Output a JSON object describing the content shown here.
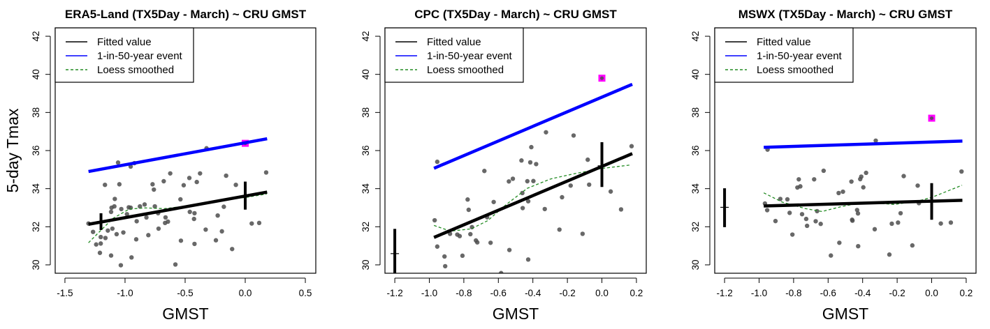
{
  "chart_data": [
    {
      "type": "scatter",
      "title": "ERA5-Land (TX5Day - March) ~ CRU GMST",
      "xlabel": "GMST",
      "ylabel": "5-day Tmax",
      "xlim": [
        -1.581,
        0.587
      ],
      "ylim": [
        29.56,
        42.44
      ],
      "xticks": [
        -1.5,
        -1.0,
        -0.5,
        0.0,
        0.5
      ],
      "xtick_labels": [
        "-1.5",
        "-1.0",
        "-0.5",
        "0.0",
        "0.5"
      ],
      "yticks": [
        30,
        32,
        34,
        36,
        38,
        40,
        42
      ],
      "ytick_labels": [
        "30",
        "32",
        "34",
        "36",
        "38",
        "40",
        "42"
      ],
      "legend": {
        "position": "top-left",
        "entries": [
          "Fitted value",
          "1-in-50-year event",
          "Loess smoothed"
        ]
      },
      "colors": {
        "fitted": "#000000",
        "event": "#0000ff",
        "loess": "#228b22",
        "points": "#4d4d4d",
        "observed": "#ff00ff"
      },
      "points": [
        [
          -1.304,
          32.17
        ],
        [
          -1.266,
          31.73
        ],
        [
          -1.24,
          31.07
        ],
        [
          -1.209,
          30.63
        ],
        [
          -1.202,
          31.12
        ],
        [
          -1.202,
          31.46
        ],
        [
          -1.163,
          31.41
        ],
        [
          -1.167,
          34.2
        ],
        [
          -1.143,
          31.8
        ],
        [
          -1.116,
          30.49
        ],
        [
          -1.116,
          32.78
        ],
        [
          -1.112,
          33.0
        ],
        [
          -1.105,
          31.9
        ],
        [
          -1.085,
          33.46
        ],
        [
          -1.089,
          33.07
        ],
        [
          -1.07,
          31.61
        ],
        [
          -1.058,
          35.37
        ],
        [
          -1.047,
          34.23
        ],
        [
          -1.035,
          29.98
        ],
        [
          -1.031,
          32.93
        ],
        [
          -1.014,
          31.7
        ],
        [
          -0.984,
          32.66
        ],
        [
          -0.969,
          33.02
        ],
        [
          -0.953,
          33.0
        ],
        [
          -0.953,
          35.16
        ],
        [
          -0.946,
          30.39
        ],
        [
          -0.922,
          35.34
        ],
        [
          -0.907,
          31.34
        ],
        [
          -0.903,
          32.29
        ],
        [
          -0.876,
          33.07
        ],
        [
          -0.837,
          33.17
        ],
        [
          -0.822,
          32.49
        ],
        [
          -0.806,
          31.56
        ],
        [
          -0.771,
          34.23
        ],
        [
          -0.76,
          33.95
        ],
        [
          -0.752,
          33.07
        ],
        [
          -0.721,
          31.9
        ],
        [
          -0.725,
          32.71
        ],
        [
          -0.678,
          34.39
        ],
        [
          -0.667,
          32.2
        ],
        [
          -0.663,
          32.49
        ],
        [
          -0.643,
          32.27
        ],
        [
          -0.624,
          34.8
        ],
        [
          -0.581,
          30.02
        ],
        [
          -0.539,
          33.44
        ],
        [
          -0.535,
          31.27
        ],
        [
          -0.512,
          34.18
        ],
        [
          -0.465,
          34.56
        ],
        [
          -0.461,
          32.78
        ],
        [
          -0.426,
          32.41
        ],
        [
          -0.422,
          32.71
        ],
        [
          -0.422,
          31.1
        ],
        [
          -0.403,
          34.35
        ],
        [
          -0.376,
          34.8
        ],
        [
          -0.329,
          31.85
        ],
        [
          -0.322,
          36.12
        ],
        [
          -0.244,
          31.29
        ],
        [
          -0.229,
          32.59
        ],
        [
          -0.194,
          31.76
        ],
        [
          -0.178,
          33.05
        ],
        [
          -0.159,
          34.68
        ],
        [
          -0.109,
          30.83
        ],
        [
          -0.078,
          34.2
        ],
        [
          0.054,
          32.17
        ],
        [
          0.116,
          32.2
        ],
        [
          0.174,
          34.85
        ]
      ],
      "observed": [
        0.0,
        36.38
      ],
      "fitted_line": [
        [
          -1.304,
          32.13
        ],
        [
          0.182,
          33.82
        ]
      ],
      "event_line": [
        [
          -1.304,
          34.9
        ],
        [
          0.182,
          36.62
        ]
      ],
      "loess": [
        [
          -1.304,
          31.16
        ],
        [
          -1.198,
          31.83
        ],
        [
          -1.1,
          32.44
        ],
        [
          -0.965,
          32.93
        ],
        [
          -0.83,
          32.99
        ],
        [
          -0.674,
          32.95
        ],
        [
          -0.539,
          33.05
        ],
        [
          -0.345,
          33.23
        ],
        [
          -0.151,
          33.44
        ],
        [
          0.004,
          33.54
        ],
        [
          0.178,
          33.72
        ]
      ],
      "error_bars": [
        {
          "x": -1.2,
          "low": 31.83,
          "high": 32.71,
          "center": 32.27
        },
        {
          "x": 0.0,
          "low": 32.9,
          "high": 34.37,
          "center": 33.6
        }
      ]
    },
    {
      "type": "scatter",
      "title": "CPC (TX5Day - March) ~ CRU GMST",
      "xlabel": "GMST",
      "ylabel": "",
      "xlim": [
        -1.257,
        0.257
      ],
      "ylim": [
        29.56,
        42.44
      ],
      "xticks": [
        -1.2,
        -1.0,
        -0.8,
        -0.6,
        -0.4,
        -0.2,
        0.0,
        0.2
      ],
      "xtick_labels": [
        "-1.2",
        "-1.0",
        "-0.8",
        "-0.6",
        "-0.4",
        "-0.2",
        "0.0",
        "0.2"
      ],
      "yticks": [
        30,
        32,
        34,
        36,
        38,
        40,
        42
      ],
      "ytick_labels": [
        "30",
        "32",
        "34",
        "36",
        "38",
        "40",
        "42"
      ],
      "legend": {
        "position": "top-left",
        "entries": [
          "Fitted value",
          "1-in-50-year event",
          "Loess smoothed"
        ]
      },
      "colors": {
        "fitted": "#000000",
        "event": "#0000ff",
        "loess": "#228b22",
        "points": "#4d4d4d",
        "observed": "#ff00ff"
      },
      "points": [
        [
          -0.969,
          32.34
        ],
        [
          -0.954,
          35.41
        ],
        [
          -0.954,
          30.96
        ],
        [
          -0.912,
          30.44
        ],
        [
          -0.908,
          29.93
        ],
        [
          -0.88,
          31.63
        ],
        [
          -0.838,
          31.59
        ],
        [
          -0.824,
          31.51
        ],
        [
          -0.808,
          30.48
        ],
        [
          -0.778,
          33.43
        ],
        [
          -0.772,
          32.89
        ],
        [
          -0.762,
          31.61
        ],
        [
          -0.753,
          31.98
        ],
        [
          -0.73,
          31.28
        ],
        [
          -0.722,
          31.18
        ],
        [
          -0.681,
          34.93
        ],
        [
          -0.665,
          32.5
        ],
        [
          -0.645,
          31.16
        ],
        [
          -0.627,
          33.3
        ],
        [
          -0.584,
          29.57
        ],
        [
          -0.539,
          34.38
        ],
        [
          -0.536,
          30.78
        ],
        [
          -0.516,
          34.52
        ],
        [
          -0.466,
          35.48
        ],
        [
          -0.461,
          33.77
        ],
        [
          -0.459,
          32.98
        ],
        [
          -0.432,
          34.39
        ],
        [
          -0.427,
          33.34
        ],
        [
          -0.427,
          30.28
        ],
        [
          -0.415,
          35.38
        ],
        [
          -0.409,
          36.18
        ],
        [
          -0.397,
          34.4
        ],
        [
          -0.381,
          35.29
        ],
        [
          -0.331,
          32.93
        ],
        [
          -0.324,
          36.96
        ],
        [
          -0.246,
          31.85
        ],
        [
          -0.231,
          33.55
        ],
        [
          -0.181,
          34.16
        ],
        [
          -0.164,
          36.79
        ],
        [
          -0.112,
          31.63
        ],
        [
          -0.082,
          35.52
        ],
        [
          -0.074,
          34.21
        ],
        [
          0.051,
          33.85
        ],
        [
          0.111,
          32.91
        ],
        [
          0.172,
          36.23
        ]
      ],
      "observed": [
        0.0,
        39.8
      ],
      "fitted_line": [
        [
          -0.973,
          31.44
        ],
        [
          0.176,
          35.84
        ]
      ],
      "event_line": [
        [
          -0.973,
          35.07
        ],
        [
          0.176,
          39.48
        ]
      ],
      "loess": [
        [
          -0.973,
          32.07
        ],
        [
          -0.878,
          31.77
        ],
        [
          -0.757,
          31.89
        ],
        [
          -0.662,
          32.32
        ],
        [
          -0.554,
          33.17
        ],
        [
          -0.432,
          34.02
        ],
        [
          -0.297,
          34.51
        ],
        [
          -0.162,
          34.78
        ],
        [
          0.0,
          35.06
        ],
        [
          0.162,
          35.24
        ]
      ],
      "error_bars": [
        {
          "x": -1.2,
          "low": 29.4,
          "high": 31.89,
          "center": 30.59
        },
        {
          "x": 0.0,
          "low": 34.09,
          "high": 36.44,
          "center": 35.2
        }
      ]
    },
    {
      "type": "scatter",
      "title": "MSWX (TX5Day - March) ~ CRU GMST",
      "xlabel": "GMST",
      "ylabel": "",
      "xlim": [
        -1.257,
        0.257
      ],
      "ylim": [
        29.56,
        42.44
      ],
      "xticks": [
        -1.2,
        -1.0,
        -0.8,
        -0.6,
        -0.4,
        -0.2,
        0.0,
        0.2
      ],
      "xtick_labels": [
        "-1.2",
        "-1.0",
        "-0.8",
        "-0.6",
        "-0.4",
        "-0.2",
        "0.0",
        "0.2"
      ],
      "yticks": [
        30,
        32,
        34,
        36,
        38,
        40,
        42
      ],
      "ytick_labels": [
        "30",
        "32",
        "34",
        "36",
        "38",
        "40",
        "42"
      ],
      "legend": {
        "position": "top-left",
        "entries": [
          "Fitted value",
          "1-in-50-year event",
          "Loess smoothed"
        ]
      },
      "colors": {
        "fitted": "#000000",
        "event": "#0000ff",
        "loess": "#228b22",
        "points": "#4d4d4d",
        "observed": "#ff00ff"
      },
      "points": [
        [
          -0.966,
          33.22
        ],
        [
          -0.951,
          36.05
        ],
        [
          -0.953,
          32.87
        ],
        [
          -0.905,
          32.3
        ],
        [
          -0.877,
          33.46
        ],
        [
          -0.836,
          33.44
        ],
        [
          -0.823,
          32.73
        ],
        [
          -0.807,
          31.59
        ],
        [
          -0.778,
          34.06
        ],
        [
          -0.77,
          34.49
        ],
        [
          -0.761,
          34.12
        ],
        [
          -0.751,
          32.66
        ],
        [
          -0.727,
          32.41
        ],
        [
          -0.722,
          32.05
        ],
        [
          -0.681,
          34.49
        ],
        [
          -0.672,
          32.29
        ],
        [
          -0.664,
          32.82
        ],
        [
          -0.643,
          32.15
        ],
        [
          -0.626,
          34.94
        ],
        [
          -0.584,
          30.49
        ],
        [
          -0.539,
          33.77
        ],
        [
          -0.535,
          31.16
        ],
        [
          -0.514,
          33.84
        ],
        [
          -0.465,
          34.37
        ],
        [
          -0.461,
          32.37
        ],
        [
          -0.459,
          32.32
        ],
        [
          -0.432,
          32.88
        ],
        [
          -0.427,
          32.7
        ],
        [
          -0.426,
          30.98
        ],
        [
          -0.414,
          34.5
        ],
        [
          -0.408,
          34.63
        ],
        [
          -0.396,
          34.07
        ],
        [
          -0.38,
          34.83
        ],
        [
          -0.33,
          31.87
        ],
        [
          -0.324,
          36.52
        ],
        [
          -0.245,
          30.54
        ],
        [
          -0.231,
          32.16
        ],
        [
          -0.195,
          32.22
        ],
        [
          -0.18,
          32.71
        ],
        [
          -0.162,
          34.66
        ],
        [
          -0.112,
          31.02
        ],
        [
          -0.081,
          34.16
        ],
        [
          -0.074,
          33.24
        ],
        [
          0.053,
          32.17
        ],
        [
          0.111,
          32.22
        ],
        [
          0.173,
          34.9
        ]
      ],
      "observed": [
        0.0,
        37.7
      ],
      "fitted_line": [
        [
          -0.973,
          33.09
        ],
        [
          0.178,
          33.39
        ]
      ],
      "event_line": [
        [
          -0.973,
          36.17
        ],
        [
          0.178,
          36.5
        ]
      ],
      "loess": [
        [
          -0.973,
          33.78
        ],
        [
          -0.865,
          33.29
        ],
        [
          -0.73,
          32.95
        ],
        [
          -0.635,
          32.8
        ],
        [
          -0.527,
          33.05
        ],
        [
          -0.392,
          33.29
        ],
        [
          -0.216,
          33.17
        ],
        [
          -0.081,
          33.35
        ],
        [
          0.0,
          33.54
        ],
        [
          0.176,
          34.18
        ]
      ],
      "error_bars": [
        {
          "x": -1.2,
          "low": 31.98,
          "high": 34.02,
          "center": 33.02
        },
        {
          "x": 0.0,
          "low": 32.37,
          "high": 34.29,
          "center": 33.3
        }
      ]
    }
  ]
}
